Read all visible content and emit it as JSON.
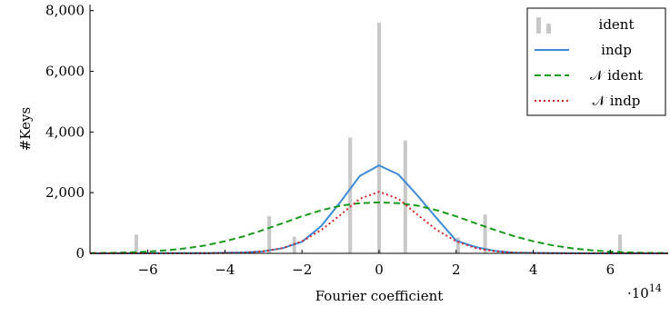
{
  "chart_data": {
    "type": "line",
    "xlabel": "Fourier coefficient",
    "ylabel": "#Keys",
    "x_scale_label": "·10",
    "x_scale_exponent": "14",
    "xlim": [
      -7.5,
      7.5
    ],
    "ylim": [
      0,
      8200
    ],
    "x_ticks": [
      -6,
      -4,
      -2,
      0,
      2,
      4,
      6
    ],
    "x_tick_labels": [
      "−6",
      "−4",
      "−2",
      "0",
      "2",
      "4",
      "6"
    ],
    "y_ticks": [
      0,
      2000,
      4000,
      6000,
      8000
    ],
    "y_tick_labels": [
      "0",
      "2,000",
      "4,000",
      "6,000",
      "8,000"
    ],
    "grid": false,
    "legend_position": "top-right",
    "series": [
      {
        "name": "ident",
        "kind": "bar",
        "color": "#c8c8c8",
        "x": [
          -6.3,
          -2.85,
          -2.2,
          -0.75,
          0,
          0.68,
          2.05,
          2.75,
          6.25
        ],
        "y": [
          620,
          1230,
          550,
          3820,
          7600,
          3720,
          520,
          1280,
          620
        ]
      },
      {
        "name": "indp",
        "kind": "line",
        "color": "#3d8ad6",
        "dash": "solid",
        "x": [
          -7.5,
          -6.5,
          -5.5,
          -4.5,
          -3.5,
          -3.0,
          -2.5,
          -2.0,
          -1.5,
          -1.0,
          -0.5,
          0,
          0.5,
          1.0,
          1.5,
          2.0,
          2.5,
          3.0,
          3.5,
          4.5,
          5.5,
          6.5,
          7.5
        ],
        "y": [
          0,
          0,
          5,
          10,
          30,
          70,
          170,
          380,
          900,
          1700,
          2550,
          2900,
          2600,
          1900,
          1150,
          420,
          210,
          80,
          25,
          5,
          0,
          0,
          0
        ]
      },
      {
        "name": "𝒩 ident",
        "kind": "line",
        "color": "#1a9a1a",
        "dash": "dashed",
        "x": [
          -7.5,
          -7.0,
          -6.5,
          -6.0,
          -5.5,
          -5.0,
          -4.5,
          -4.0,
          -3.5,
          -3.0,
          -2.5,
          -2.0,
          -1.5,
          -1.0,
          -0.5,
          0,
          0.5,
          1.0,
          1.5,
          2.0,
          2.5,
          3.0,
          3.5,
          4.0,
          4.5,
          5.0,
          5.5,
          6.0,
          6.5,
          7.0,
          7.5
        ],
        "y": [
          8,
          16,
          31,
          57,
          101,
          167,
          264,
          397,
          567,
          771,
          995,
          1220,
          1420,
          1570,
          1652,
          1680,
          1652,
          1570,
          1420,
          1220,
          995,
          771,
          567,
          397,
          264,
          167,
          101,
          57,
          31,
          16,
          8
        ]
      },
      {
        "name": "𝒩 indp",
        "kind": "line",
        "color": "#d6282c",
        "dash": "dotted",
        "x": [
          -7.5,
          -6.0,
          -5.0,
          -4.0,
          -3.5,
          -3.0,
          -2.5,
          -2.0,
          -1.5,
          -1.0,
          -0.5,
          0,
          0.5,
          1.0,
          1.5,
          2.0,
          2.5,
          3.0,
          3.5,
          4.0,
          5.0,
          6.0,
          7.5
        ],
        "y": [
          0,
          0,
          1,
          8,
          22,
          66,
          175,
          397,
          768,
          1270,
          1800,
          2030,
          1800,
          1270,
          768,
          397,
          175,
          66,
          22,
          8,
          1,
          0,
          0
        ]
      }
    ]
  }
}
